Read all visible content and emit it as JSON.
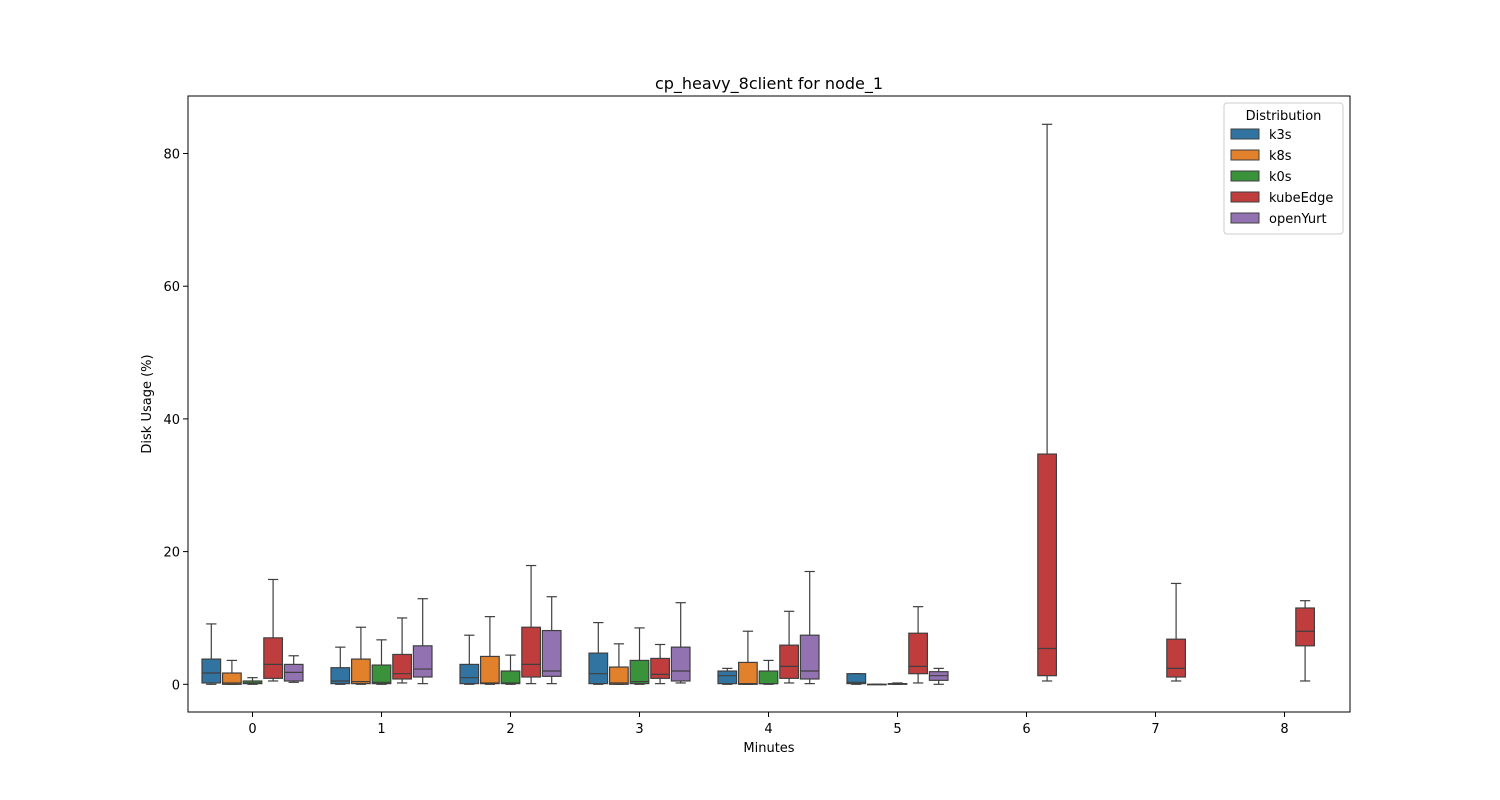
{
  "chart_data": {
    "type": "box",
    "title": "cp_heavy_8client for node_1",
    "xlabel": "Minutes",
    "ylabel": "Disk Usage (%)",
    "ylim": [
      -4.2,
      88.7
    ],
    "yticks": [
      0,
      20,
      40,
      60,
      80
    ],
    "categories": [
      "0",
      "1",
      "2",
      "3",
      "4",
      "5",
      "6",
      "7",
      "8"
    ],
    "legend": {
      "title": "Distribution",
      "position": "top-right"
    },
    "series": [
      {
        "name": "k3s",
        "color": "#3274a1",
        "boxes": [
          {
            "x": "0",
            "min": 0.0,
            "q1": 0.2,
            "median": 1.7,
            "q3": 3.8,
            "max": 9.1
          },
          {
            "x": "1",
            "min": 0.0,
            "q1": 0.1,
            "median": 0.5,
            "q3": 2.5,
            "max": 5.6
          },
          {
            "x": "2",
            "min": 0.0,
            "q1": 0.1,
            "median": 1.0,
            "q3": 3.0,
            "max": 7.4
          },
          {
            "x": "3",
            "min": 0.0,
            "q1": 0.1,
            "median": 1.6,
            "q3": 4.7,
            "max": 9.3
          },
          {
            "x": "4",
            "min": 0.0,
            "q1": 0.1,
            "median": 1.3,
            "q3": 2.0,
            "max": 2.4
          },
          {
            "x": "5",
            "min": 0.0,
            "q1": 0.1,
            "median": 0.3,
            "q3": 1.6,
            "max": 1.6
          }
        ]
      },
      {
        "name": "k8s",
        "color": "#e1812c",
        "boxes": [
          {
            "x": "0",
            "min": 0.0,
            "q1": 0.0,
            "median": 0.2,
            "q3": 1.7,
            "max": 3.6
          },
          {
            "x": "1",
            "min": 0.0,
            "q1": 0.1,
            "median": 0.4,
            "q3": 3.8,
            "max": 8.6
          },
          {
            "x": "2",
            "min": 0.0,
            "q1": 0.1,
            "median": 0.2,
            "q3": 4.2,
            "max": 10.2
          },
          {
            "x": "3",
            "min": 0.0,
            "q1": 0.0,
            "median": 0.2,
            "q3": 2.6,
            "max": 6.1
          },
          {
            "x": "4",
            "min": 0.0,
            "q1": 0.0,
            "median": 0.1,
            "q3": 3.3,
            "max": 8.0
          },
          {
            "x": "5",
            "min": 0.0,
            "q1": 0.0,
            "median": 0.0,
            "q3": 0.0,
            "max": 0.0
          }
        ]
      },
      {
        "name": "k0s",
        "color": "#3a923a",
        "boxes": [
          {
            "x": "0",
            "min": 0.0,
            "q1": 0.1,
            "median": 0.2,
            "q3": 0.5,
            "max": 1.0
          },
          {
            "x": "1",
            "min": 0.0,
            "q1": 0.1,
            "median": 0.3,
            "q3": 2.9,
            "max": 6.7
          },
          {
            "x": "2",
            "min": 0.0,
            "q1": 0.1,
            "median": 0.2,
            "q3": 2.0,
            "max": 4.4
          },
          {
            "x": "3",
            "min": 0.0,
            "q1": 0.1,
            "median": 0.4,
            "q3": 3.6,
            "max": 8.5
          },
          {
            "x": "4",
            "min": 0.0,
            "q1": 0.1,
            "median": 0.1,
            "q3": 2.0,
            "max": 3.6
          },
          {
            "x": "5",
            "min": 0.0,
            "q1": 0.0,
            "median": 0.1,
            "q3": 0.1,
            "max": 0.2
          }
        ]
      },
      {
        "name": "kubeEdge",
        "color": "#c03d3e",
        "boxes": [
          {
            "x": "0",
            "min": 0.5,
            "q1": 0.9,
            "median": 3.0,
            "q3": 7.0,
            "max": 15.8
          },
          {
            "x": "1",
            "min": 0.2,
            "q1": 0.8,
            "median": 1.6,
            "q3": 4.5,
            "max": 10.0
          },
          {
            "x": "2",
            "min": 0.1,
            "q1": 1.1,
            "median": 3.0,
            "q3": 8.6,
            "max": 17.9
          },
          {
            "x": "3",
            "min": 0.1,
            "q1": 0.9,
            "median": 1.5,
            "q3": 3.9,
            "max": 6.0
          },
          {
            "x": "4",
            "min": 0.2,
            "q1": 0.9,
            "median": 2.7,
            "q3": 5.9,
            "max": 11.0
          },
          {
            "x": "5",
            "min": 0.2,
            "q1": 1.6,
            "median": 2.7,
            "q3": 7.7,
            "max": 11.7
          },
          {
            "x": "6",
            "min": 0.5,
            "q1": 1.3,
            "median": 5.4,
            "q3": 34.7,
            "max": 84.4
          },
          {
            "x": "7",
            "min": 0.5,
            "q1": 1.1,
            "median": 2.4,
            "q3": 6.8,
            "max": 15.2
          },
          {
            "x": "8",
            "min": 0.5,
            "q1": 5.8,
            "median": 8.0,
            "q3": 11.5,
            "max": 12.6
          }
        ]
      },
      {
        "name": "openYurt",
        "color": "#9372b2",
        "boxes": [
          {
            "x": "0",
            "min": 0.3,
            "q1": 0.5,
            "median": 1.8,
            "q3": 3.0,
            "max": 4.3
          },
          {
            "x": "1",
            "min": 0.1,
            "q1": 1.1,
            "median": 2.3,
            "q3": 5.8,
            "max": 12.9
          },
          {
            "x": "2",
            "min": 0.1,
            "q1": 1.2,
            "median": 2.0,
            "q3": 8.1,
            "max": 13.2
          },
          {
            "x": "3",
            "min": 0.2,
            "q1": 0.5,
            "median": 2.0,
            "q3": 5.6,
            "max": 12.3
          },
          {
            "x": "4",
            "min": 0.1,
            "q1": 0.8,
            "median": 2.0,
            "q3": 7.4,
            "max": 17.0
          },
          {
            "x": "5",
            "min": 0.0,
            "q1": 0.6,
            "median": 1.3,
            "q3": 1.9,
            "max": 2.4
          }
        ]
      }
    ]
  }
}
